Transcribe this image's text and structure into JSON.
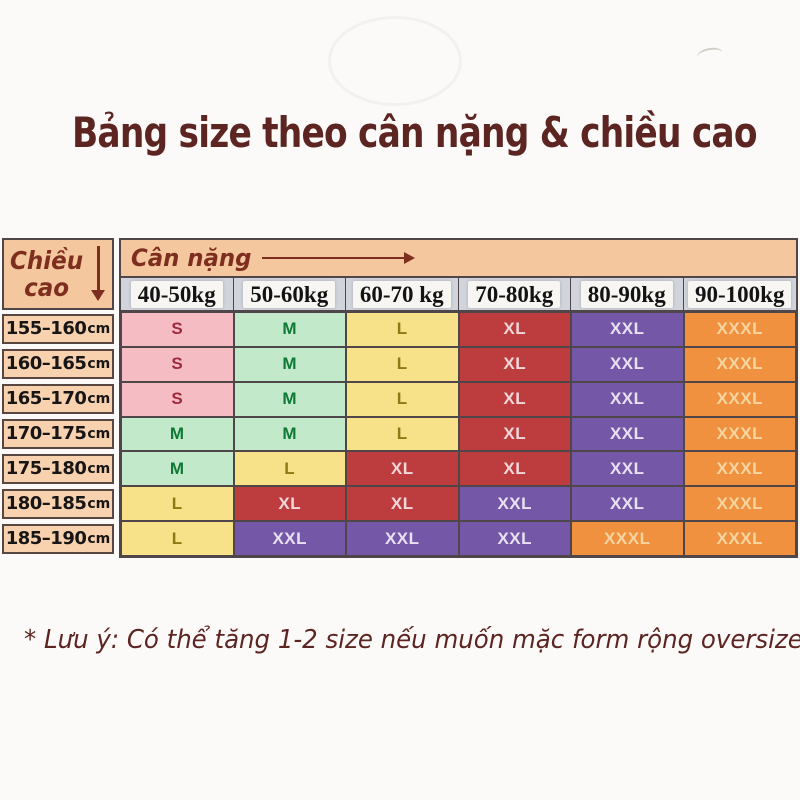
{
  "title": "Bảng size theo cân nặng & chiều cao",
  "note": "* Lưu ý: Có thể tăng 1-2 size nếu muốn mặc form rộng oversize",
  "table": {
    "corner_header": "Chiều\ncao",
    "weight_header": "Cân nặng",
    "unit": "cm",
    "row_heights": [
      "155–160",
      "160–165",
      "165–170",
      "170–175",
      "175–180",
      "180–185",
      "185–190"
    ]
  },
  "chart_data": {
    "type": "table",
    "title": "Bảng size theo cân nặng & chiều cao",
    "row_axis": "Chiều cao",
    "col_axis": "Cân nặng",
    "columns": [
      "40-50kg",
      "50-60kg",
      "60-70 kg",
      "70-80kg",
      "80-90kg",
      "90-100kg"
    ],
    "rows": [
      "155–160cm",
      "160–165cm",
      "165–170cm",
      "170–175cm",
      "175–180cm",
      "180–185cm",
      "185–190cm"
    ],
    "values": [
      [
        "S",
        "M",
        "L",
        "XL",
        "XXL",
        "XXXL"
      ],
      [
        "S",
        "M",
        "L",
        "XL",
        "XXL",
        "XXXL"
      ],
      [
        "S",
        "M",
        "L",
        "XL",
        "XXL",
        "XXXL"
      ],
      [
        "M",
        "M",
        "L",
        "XL",
        "XXL",
        "XXXL"
      ],
      [
        "M",
        "L",
        "XL",
        "XL",
        "XXL",
        "XXXL"
      ],
      [
        "L",
        "XL",
        "XL",
        "XXL",
        "XXL",
        "XXXL"
      ],
      [
        "L",
        "XXL",
        "XXL",
        "XXL",
        "XXXL",
        "XXXL"
      ]
    ],
    "note": "* Lưu ý: Có thể tăng 1-2 size nếu muốn mặc form rộng oversize"
  },
  "colors": {
    "title_text": "#5c2522",
    "axis_text": "#7e2e1e",
    "header_band_bg": "#f4c79e",
    "height_cell_bg": "#f8d2ae",
    "weight_row_bg": "#d2d4dc",
    "weight_chip_bg": "#f7f6f3",
    "grid_border": "#4f464a",
    "size_s_bg": "#f5bcc4",
    "size_s_text": "#9e2a3d",
    "size_m_bg": "#c2e9c9",
    "size_m_text": "#0e7a35",
    "size_l_bg": "#f7e289",
    "size_l_text": "#8b7b12",
    "size_xl_bg": "#bd3c3e",
    "size_xl_text": "#f2d7da",
    "size_xxl_bg": "#7457a7",
    "size_xxl_text": "#e9e0f2",
    "size_xxxl_bg": "#f0913f",
    "size_xxxl_text": "#f6d5a1"
  }
}
